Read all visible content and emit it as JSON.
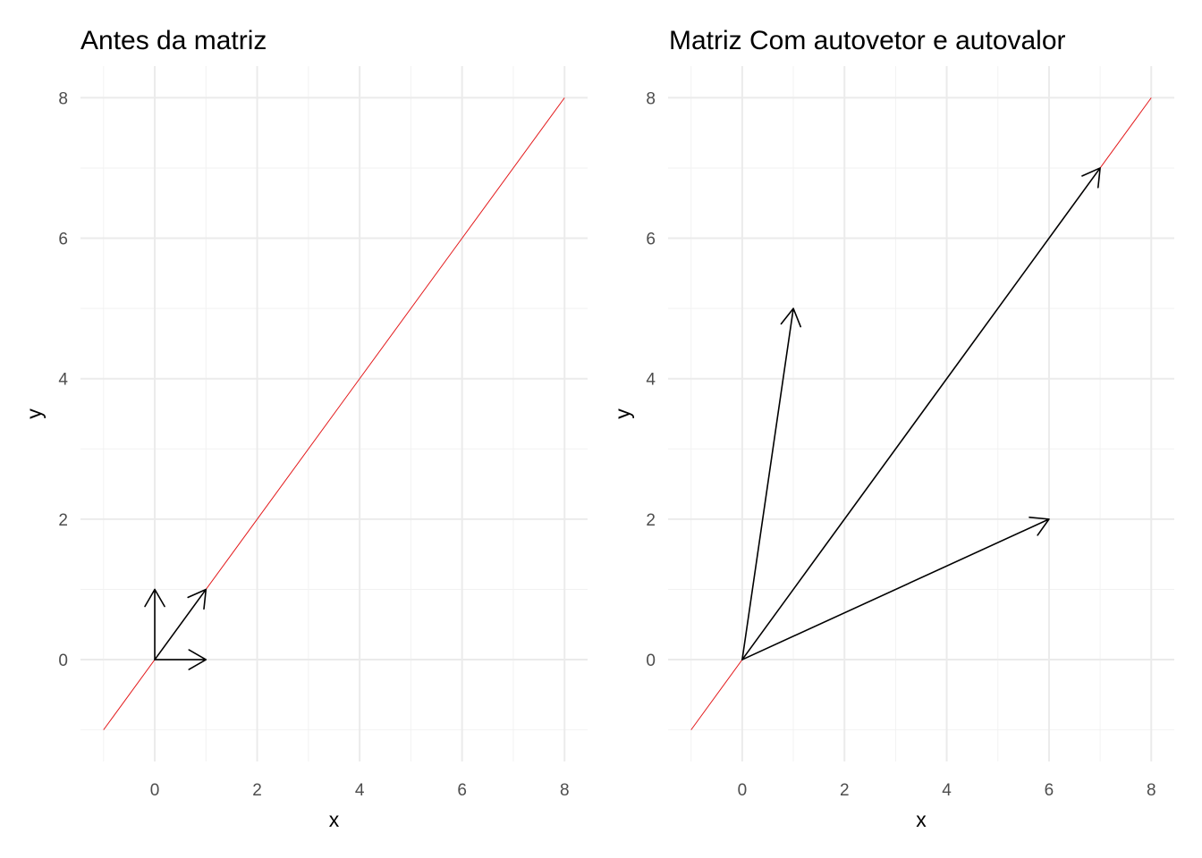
{
  "chart_data": [
    {
      "type": "line",
      "title": "Antes da matriz",
      "xlabel": "x",
      "ylabel": "y",
      "xlim": [
        -1,
        8
      ],
      "ylim": [
        -1,
        8
      ],
      "xticks": [
        0,
        2,
        4,
        6,
        8
      ],
      "yticks": [
        0,
        2,
        4,
        6,
        8
      ],
      "grid": true,
      "reference_line": {
        "x": [
          -1,
          8
        ],
        "y": [
          -1,
          8
        ],
        "color": "#e31a1c"
      },
      "vectors": [
        {
          "x0": 0,
          "y0": 0,
          "x1": 1,
          "y1": 0
        },
        {
          "x0": 0,
          "y0": 0,
          "x1": 0,
          "y1": 1
        },
        {
          "x0": 0,
          "y0": 0,
          "x1": 1,
          "y1": 1
        }
      ]
    },
    {
      "type": "line",
      "title": "Matriz Com autovetor e autovalor",
      "xlabel": "x",
      "ylabel": "y",
      "xlim": [
        -1,
        8
      ],
      "ylim": [
        -1,
        8
      ],
      "xticks": [
        0,
        2,
        4,
        6,
        8
      ],
      "yticks": [
        0,
        2,
        4,
        6,
        8
      ],
      "grid": true,
      "reference_line": {
        "x": [
          -1,
          8
        ],
        "y": [
          -1,
          8
        ],
        "color": "#e31a1c"
      },
      "vectors": [
        {
          "x0": 0,
          "y0": 0,
          "x1": 6,
          "y1": 2
        },
        {
          "x0": 0,
          "y0": 0,
          "x1": 1,
          "y1": 5
        },
        {
          "x0": 0,
          "y0": 0,
          "x1": 7,
          "y1": 7
        }
      ]
    }
  ]
}
